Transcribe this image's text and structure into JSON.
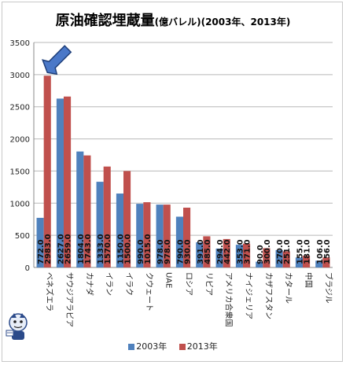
{
  "title": "原油確認埋蔵量",
  "subtitle": "(億バレル)(2003年、2013年)",
  "colors": {
    "s2003": "#4f81bd",
    "s2013": "#c0504d"
  },
  "icons": [
    "arrow-pointer-icon",
    "mascot-icon"
  ],
  "chart_data": {
    "type": "bar",
    "categories": [
      "ベネズエラ",
      "サウジアラビア",
      "カナダ",
      "イラン",
      "イラク",
      "クウェート",
      "UAE",
      "ロシア",
      "リビア",
      "アメリカ合衆国",
      "ナイジェリア",
      "カザフスタン",
      "カタール",
      "中国",
      "ブラジル"
    ],
    "series": [
      {
        "name": "2003年",
        "values": [
          772.0,
          2627.0,
          1804.0,
          1333.0,
          1150.0,
          990.0,
          978.0,
          790.0,
          391.0,
          294.0,
          353.0,
          90.0,
          270.0,
          155.0,
          106.0
        ],
        "labels": [
          "772.0",
          "2627.0",
          "1804.0",
          "1333.0",
          "1150.0",
          "990.0",
          "978.0",
          "790.0",
          "391.0",
          "294.0",
          "353.0",
          "90.0",
          "270.0",
          "155.0",
          "106.0"
        ]
      },
      {
        "name": "2013年",
        "values": [
          2983.0,
          2659.0,
          1743.0,
          1570.0,
          1500.0,
          1015.0,
          978.0,
          930.0,
          485.0,
          442.0,
          371.0,
          300.0,
          251.0,
          181.0,
          156.0
        ],
        "labels": [
          "2983.0",
          "2659.0",
          "1743.0",
          "1570.0",
          "1500.0",
          "1015.0",
          "978.0",
          "930.0",
          "485.0",
          "442.0",
          "371.0",
          "300.0",
          "251.0",
          "181.0",
          "156.0"
        ]
      }
    ],
    "ylim": [
      0,
      3500
    ],
    "yticks": [
      "0",
      "500",
      "1000",
      "1500",
      "2000",
      "2500",
      "3000",
      "3500"
    ],
    "grid": true,
    "legend": "bottom",
    "annotation": "arrow pointing at ベネズエラ 2013"
  }
}
